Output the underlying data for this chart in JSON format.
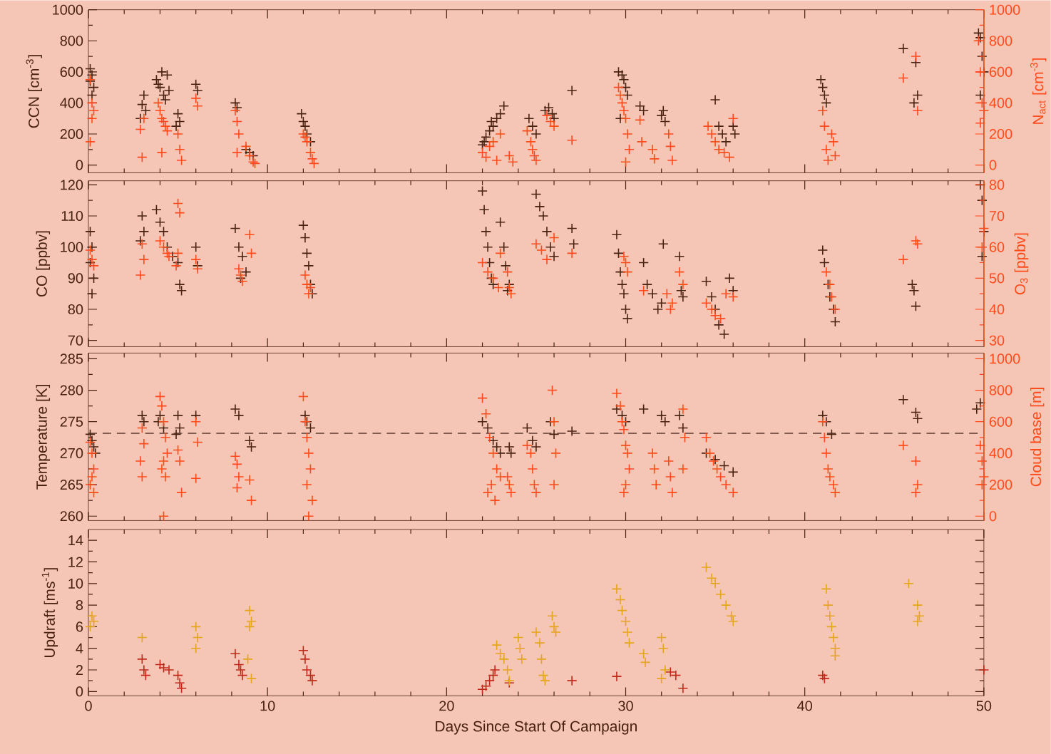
{
  "chart_data": [
    {
      "type": "scatter",
      "marker": "cross",
      "ylabel": "CCN [cm$^{-3}$]",
      "y2label": "N$_{act}$ [cm$^{-3}$]",
      "xlim": [
        0,
        50
      ],
      "xticks": [
        0,
        10,
        20,
        30,
        40,
        50
      ],
      "ylim": [
        -50,
        1000
      ],
      "yticks": [
        0,
        200,
        400,
        600,
        800,
        1000
      ],
      "y2lim": [
        -50,
        1000
      ],
      "y2ticks": [
        0,
        200,
        400,
        600,
        800,
        1000
      ],
      "tick_labels": "y",
      "series": [
        {
          "color": "#4a2212",
          "x": [
            0.1,
            0.2,
            0.1,
            0.3,
            0.2,
            3,
            3.1,
            2.9,
            3.2,
            3.8,
            4,
            4.2,
            4.4,
            4.1,
            3.9,
            4.5,
            4.3,
            5,
            5.1,
            4.9,
            6,
            6.1,
            8.2,
            8.3,
            8.8,
            9,
            9.2,
            11.9,
            12,
            12.1,
            12.2,
            12.4,
            22,
            22.2,
            22.4,
            22.6,
            22.8,
            23,
            23.2,
            22.5,
            22.1,
            24.6,
            24.8,
            25,
            25.5,
            25.7,
            25.9,
            26,
            27,
            29.6,
            29.8,
            29.9,
            30,
            30.1,
            29.7,
            30.8,
            31,
            32,
            32.2,
            32.1,
            35,
            35.2,
            35.4,
            35.6,
            36,
            36.1,
            40.9,
            41,
            41.1,
            41.2,
            45.5,
            46.2,
            46.3,
            46.1,
            49.7,
            49.8,
            49.9,
            50,
            49.8
          ],
          "values": [
            620,
            580,
            540,
            500,
            450,
            390,
            450,
            300,
            350,
            550,
            500,
            450,
            580,
            600,
            520,
            480,
            420,
            330,
            280,
            250,
            520,
            480,
            400,
            370,
            100,
            80,
            60,
            330,
            280,
            250,
            200,
            150,
            130,
            180,
            220,
            250,
            300,
            330,
            380,
            280,
            150,
            300,
            250,
            200,
            350,
            370,
            330,
            300,
            480,
            600,
            580,
            550,
            500,
            450,
            300,
            380,
            350,
            320,
            280,
            350,
            420,
            250,
            200,
            150,
            250,
            200,
            550,
            500,
            450,
            400,
            750,
            660,
            450,
            400,
            850,
            820,
            700,
            600,
            450
          ]
        },
        {
          "color": "#ff4a1a",
          "axis": "y2",
          "x": [
            0.1,
            0.2,
            0.3,
            0.2,
            0.1,
            2.9,
            3,
            3.1,
            3.9,
            4,
            4.1,
            4.2,
            4.3,
            4.4,
            4.1,
            5,
            5.1,
            5.2,
            6,
            6.1,
            8.2,
            8.3,
            8.4,
            8.3,
            8.8,
            9,
            9.2,
            9.3,
            12,
            12.1,
            12.2,
            12.4,
            12.5,
            12.6,
            22,
            22.2,
            22.4,
            22.6,
            22.8,
            23,
            23.5,
            23.7,
            24.5,
            24.7,
            24.8,
            24.9,
            25,
            25.6,
            25.8,
            26,
            27,
            29.6,
            29.7,
            29.8,
            29.9,
            30,
            30.1,
            30.2,
            30,
            30.8,
            30.9,
            31.5,
            31.6,
            32.4,
            32.5,
            32.6,
            34.6,
            34.8,
            35,
            35.2,
            35.5,
            35.8,
            36,
            41,
            41.1,
            41.2,
            41.3,
            41.5,
            41.6,
            41.7,
            45.5,
            46.2,
            46.3,
            49.7,
            49.8,
            49.9,
            50,
            49.8
          ],
          "values": [
            550,
            400,
            350,
            300,
            150,
            230,
            50,
            300,
            400,
            350,
            300,
            280,
            250,
            220,
            80,
            200,
            100,
            30,
            430,
            380,
            350,
            280,
            200,
            80,
            120,
            60,
            20,
            10,
            200,
            180,
            150,
            80,
            40,
            10,
            80,
            50,
            120,
            150,
            30,
            200,
            60,
            20,
            220,
            150,
            100,
            60,
            30,
            320,
            280,
            250,
            160,
            500,
            450,
            400,
            350,
            300,
            200,
            100,
            20,
            290,
            150,
            100,
            40,
            200,
            120,
            30,
            250,
            200,
            150,
            100,
            80,
            50,
            300,
            350,
            250,
            100,
            30,
            200,
            150,
            60,
            560,
            700,
            350,
            800,
            600,
            400,
            350,
            270
          ]
        }
      ]
    },
    {
      "type": "scatter",
      "marker": "cross",
      "ylabel": "CO [ppbv]",
      "y2label": "O$_{3}$ [ppbv]",
      "xlim": [
        0,
        50
      ],
      "xticks": [
        0,
        10,
        20,
        30,
        40,
        50
      ],
      "ylim": [
        68,
        121.3
      ],
      "yticks": [
        70,
        80,
        90,
        100,
        110,
        120
      ],
      "y2lim": [
        28,
        81.3
      ],
      "y2ticks": [
        30,
        40,
        50,
        60,
        70,
        80
      ],
      "tick_labels": "y",
      "series": [
        {
          "color": "#4a2212",
          "x": [
            0.1,
            0.2,
            0.1,
            0.3,
            0.2,
            3,
            3.1,
            2.9,
            3.8,
            4,
            4.2,
            4.4,
            4.7,
            5,
            5.1,
            5.2,
            6,
            6.1,
            8.2,
            8.4,
            8.6,
            8.8,
            8.5,
            12,
            12.1,
            12.2,
            12.3,
            12.4,
            12.5,
            22,
            22.1,
            22.2,
            22.3,
            22.4,
            22.5,
            22.6,
            23,
            23.2,
            23.3,
            23.5,
            23.4,
            25,
            25.2,
            25.4,
            25.6,
            25.8,
            26,
            27,
            27.1,
            29.5,
            29.6,
            29.7,
            29.8,
            29.9,
            30,
            30.1,
            31,
            31.2,
            31.5,
            31.8,
            32,
            32.1,
            33,
            33.1,
            33.2,
            34.5,
            34.8,
            35,
            35.2,
            35.5,
            35.8,
            36,
            41,
            41.1,
            41.3,
            41.4,
            41.6,
            41.7,
            46,
            46.1,
            46.2,
            49.8,
            49.9,
            50,
            49.9
          ],
          "values": [
            105,
            100,
            95,
            90,
            85,
            110,
            105,
            102,
            112,
            108,
            105,
            100,
            97,
            95,
            88,
            86,
            100,
            94,
            106,
            100,
            97,
            92,
            90,
            107,
            103,
            98,
            94,
            88,
            85,
            118,
            112,
            105,
            100,
            95,
            90,
            88,
            108,
            100,
            94,
            88,
            86,
            117,
            113,
            110,
            105,
            100,
            97,
            106,
            101,
            104,
            98,
            92,
            88,
            85,
            80,
            77,
            95,
            88,
            85,
            80,
            82,
            101,
            97,
            86,
            84,
            89,
            84,
            80,
            75,
            72,
            90,
            86,
            99,
            95,
            88,
            84,
            80,
            76,
            88,
            86,
            81,
            120,
            115,
            105,
            97
          ]
        },
        {
          "color": "#ff4a1a",
          "axis": "y2",
          "x": [
            0.1,
            0.2,
            0.3,
            3,
            2.9,
            3.1,
            4,
            4.2,
            4.4,
            4.5,
            5,
            5.1,
            5,
            4.9,
            6,
            6.1,
            8.4,
            8.5,
            8.6,
            9,
            9.1,
            12.1,
            12.2,
            12.3,
            12.4,
            22,
            22.3,
            22.6,
            22.9,
            23,
            23.4,
            23.5,
            23.6,
            25,
            25.3,
            25.6,
            26,
            27,
            29.9,
            30,
            30.1,
            31,
            32.3,
            32.5,
            32.6,
            33,
            33.2,
            34.5,
            34.8,
            35,
            35.3,
            35.6,
            36,
            41.2,
            41.4,
            41.5,
            41.7,
            45.5,
            46.2,
            46.3,
            50,
            49.9
          ],
          "values": [
            59,
            56,
            54,
            61,
            51,
            56,
            62,
            60,
            58,
            57,
            74,
            71,
            58,
            54,
            56,
            53,
            53,
            51,
            49,
            64,
            58,
            51,
            48,
            45,
            47,
            55,
            52,
            50,
            47,
            58,
            52,
            47,
            45,
            61,
            59,
            56,
            63,
            58,
            57,
            55,
            52,
            46,
            45,
            40,
            42,
            52,
            48,
            42,
            40,
            38,
            37,
            45,
            44,
            52,
            48,
            44,
            40,
            56,
            62,
            61,
            66,
            60
          ]
        }
      ]
    },
    {
      "type": "scatter",
      "marker": "cross",
      "ylabel": "Temperature [K]",
      "y2label": "Cloud base [m]",
      "xlim": [
        0,
        50
      ],
      "xticks": [
        0,
        10,
        20,
        30,
        40,
        50
      ],
      "ylim": [
        259.3,
        285.9
      ],
      "yticks": [
        260,
        265,
        270,
        275,
        280,
        285
      ],
      "y2lim": [
        -28,
        1036
      ],
      "y2ticks": [
        0,
        200,
        400,
        600,
        800,
        1000
      ],
      "tick_labels": "y",
      "ref_lines": [
        {
          "axis": "y",
          "value": 273.15,
          "color": "#5a3a30",
          "line_style": "dashed"
        }
      ],
      "series": [
        {
          "color": "#4a2212",
          "x": [
            0.1,
            0.2,
            0.3,
            0.4,
            3,
            3.1,
            4,
            3.9,
            4.2,
            5,
            5.1,
            4.9,
            6,
            8.2,
            8.4,
            9,
            9.1,
            12.1,
            12.2,
            12.4,
            22,
            22.3,
            22.6,
            22.8,
            23,
            23.5,
            23.6,
            24.5,
            24.8,
            25,
            25.8,
            26,
            27,
            29.5,
            29.8,
            30,
            31,
            32,
            32.2,
            33,
            33.2,
            34.5,
            35,
            35.5,
            36,
            41,
            41.2,
            41.5,
            45.5,
            46.2,
            46.3,
            49.8,
            49.6
          ],
          "values": [
            273,
            272,
            271,
            270,
            276,
            275,
            276,
            275,
            274,
            276,
            274,
            273,
            276,
            277,
            276,
            272,
            271,
            276,
            275,
            274,
            275,
            274,
            272,
            271,
            270,
            271,
            270,
            274,
            272,
            271,
            275,
            273,
            273.5,
            277,
            276,
            275,
            277,
            276,
            275,
            276,
            274,
            270,
            269,
            268,
            267,
            276,
            275,
            273,
            278.5,
            276.5,
            275.5,
            278,
            277
          ]
        },
        {
          "color": "#ff4a1a",
          "axis": "y2",
          "x": [
            0.1,
            0.2,
            0.3,
            0.2,
            0.1,
            0.3,
            3,
            3.1,
            2.9,
            3,
            4,
            4.1,
            4.2,
            4.3,
            4.4,
            4.2,
            4.1,
            4.3,
            4.2,
            5,
            5.1,
            5.2,
            6,
            6.1,
            6,
            8.2,
            8.3,
            8.4,
            8.3,
            9,
            9.1,
            12,
            12.1,
            12.2,
            12.3,
            12.4,
            12.2,
            12.5,
            12.3,
            22,
            22.2,
            22.4,
            22.6,
            22.8,
            23,
            22.5,
            22.3,
            22.7,
            23.4,
            23.5,
            23.6,
            24.5,
            24.7,
            24.8,
            24.9,
            25,
            25.9,
            26,
            26.1,
            26,
            29.5,
            29.7,
            29.8,
            29.9,
            30,
            30.1,
            30.2,
            30,
            29.9,
            31.5,
            31.6,
            31.7,
            32.4,
            32.5,
            32.6,
            33.2,
            33.3,
            33.2,
            34.5,
            34.7,
            34.9,
            35.1,
            35.3,
            35.6,
            36,
            41,
            41.1,
            41.2,
            41.3,
            41.4,
            41.6,
            41.7,
            45.5,
            46.2,
            46.3,
            46.2,
            49.8,
            49.9,
            50,
            49.9
          ],
          "values": [
            470,
            400,
            300,
            250,
            200,
            150,
            560,
            460,
            350,
            250,
            760,
            700,
            600,
            500,
            400,
            350,
            300,
            250,
            0,
            420,
            350,
            150,
            600,
            470,
            240,
            380,
            330,
            250,
            180,
            230,
            100,
            760,
            600,
            500,
            400,
            300,
            200,
            100,
            0,
            750,
            650,
            500,
            400,
            300,
            250,
            200,
            150,
            100,
            250,
            200,
            150,
            450,
            400,
            300,
            200,
            150,
            800,
            600,
            400,
            200,
            780,
            700,
            600,
            550,
            450,
            400,
            300,
            200,
            150,
            400,
            300,
            200,
            350,
            250,
            150,
            680,
            500,
            300,
            500,
            400,
            350,
            300,
            250,
            200,
            150,
            600,
            500,
            400,
            300,
            250,
            200,
            150,
            450,
            350,
            200,
            150,
            450,
            350,
            250,
            200
          ]
        }
      ]
    },
    {
      "type": "scatter",
      "marker": "cross",
      "xlabel": "Days Since Start Of Campaign",
      "ylabel": "Updraft [ms$^{-1}$]",
      "xlim": [
        0,
        50
      ],
      "xticks": [
        0,
        10,
        20,
        30,
        40,
        50
      ],
      "ylim": [
        -0.4,
        15
      ],
      "yticks": [
        0,
        2,
        4,
        6,
        8,
        10,
        12,
        14
      ],
      "series": [
        {
          "color": "#c0281a",
          "x": [
            3,
            3.1,
            3.2,
            4,
            4.2,
            4.5,
            5,
            5.1,
            5.2,
            8.2,
            8.4,
            8.5,
            8.6,
            12,
            12.1,
            12.2,
            12.4,
            12.5,
            22,
            22.2,
            22.4,
            22.6,
            22.7,
            23.5,
            27,
            29.5,
            32.5,
            32.8,
            33.2,
            41,
            41.1,
            50
          ],
          "values": [
            3,
            2,
            1.5,
            2.5,
            2.2,
            2,
            1.5,
            0.8,
            0.3,
            3.5,
            2.5,
            2,
            1.5,
            3.8,
            3,
            2,
            1.5,
            1,
            0.2,
            0.5,
            1,
            1.5,
            2,
            0.8,
            1,
            1.4,
            1.8,
            1.5,
            0.3,
            1.5,
            1.2,
            2
          ]
        },
        {
          "color": "#e5a51a",
          "x": [
            0.2,
            0.3,
            0.1,
            3,
            6,
            6.1,
            6,
            9,
            9.1,
            9,
            8.9,
            9.1,
            22.8,
            23,
            23.2,
            23.4,
            23.5,
            24,
            24.1,
            24.2,
            25,
            25.2,
            25.3,
            25.4,
            25.5,
            25.9,
            26,
            26.1,
            29.5,
            29.7,
            29.8,
            30,
            30.1,
            30.2,
            31,
            31.1,
            32,
            32.1,
            32.2,
            32,
            34.5,
            34.8,
            35,
            35.3,
            35.6,
            35.9,
            36,
            41.2,
            41.3,
            41.4,
            41.5,
            41.6,
            41.7,
            41.7,
            45.8,
            46.3,
            46.4,
            46.3
          ],
          "values": [
            7,
            6.5,
            6,
            5,
            6,
            5,
            4,
            7.5,
            6.5,
            6,
            3,
            1.2,
            4.3,
            3.5,
            3,
            2,
            1,
            5,
            4,
            3,
            5.5,
            4.5,
            3,
            1.5,
            1,
            7,
            6,
            5.5,
            9.5,
            8.5,
            7.5,
            6.5,
            5.5,
            4.5,
            3.5,
            2.7,
            5,
            4,
            2,
            1.2,
            11.5,
            10.5,
            10,
            9,
            8,
            7,
            6.5,
            9.5,
            8,
            7,
            6,
            5,
            4,
            3.3,
            10,
            8,
            7,
            6.5
          ]
        }
      ]
    }
  ]
}
